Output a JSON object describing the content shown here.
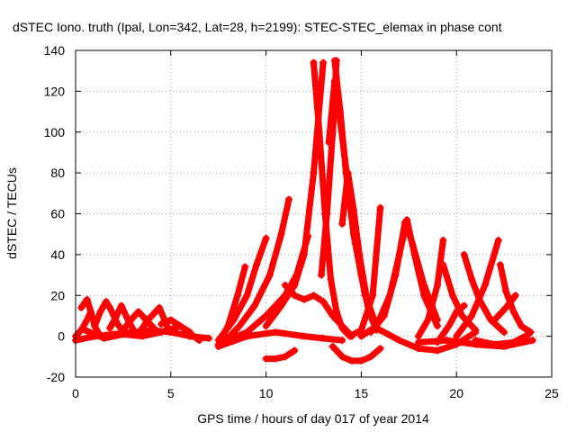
{
  "chart_data": {
    "type": "scatter",
    "title": "dSTEC Iono. truth (Ipal, Lon=342, Lat=28, h=2199): STEC-STEC_elemax in phase cont",
    "xlabel": "GPS time / hours of day 017 of year 2014",
    "ylabel": "dSTEC  / TECUs",
    "xlim": [
      0,
      25
    ],
    "ylim": [
      -20,
      140
    ],
    "xticks": [
      0,
      5,
      10,
      15,
      20,
      25
    ],
    "yticks": [
      -20,
      0,
      20,
      40,
      60,
      80,
      100,
      120,
      140
    ],
    "grid": true,
    "marker": "+",
    "color": "#ff0000",
    "series": [
      {
        "x": [
          0.0,
          0.3,
          0.6,
          0.8
        ],
        "y": [
          0,
          3,
          8,
          12
        ]
      },
      {
        "x": [
          0.3,
          0.6,
          0.8,
          1.0,
          1.3
        ],
        "y": [
          14,
          18,
          12,
          5,
          0
        ]
      },
      {
        "x": [
          1.0,
          1.3,
          1.6,
          1.8,
          2.2,
          2.6
        ],
        "y": [
          5,
          12,
          17,
          14,
          6,
          1
        ]
      },
      {
        "x": [
          1.8,
          2.1,
          2.4,
          2.7,
          3.1
        ],
        "y": [
          4,
          9,
          15,
          9,
          2
        ]
      },
      {
        "x": [
          2.5,
          2.9,
          3.3,
          3.7,
          4.2
        ],
        "y": [
          3,
          8,
          12,
          8,
          3
        ]
      },
      {
        "x": [
          3.5,
          3.8,
          4.1,
          4.4,
          4.8
        ],
        "y": [
          4,
          8,
          11,
          14,
          5
        ]
      },
      {
        "x": [
          0.0,
          1.0,
          2.0,
          3.0,
          4.0,
          5.0,
          6.0,
          7.0
        ],
        "y": [
          -2,
          0,
          1,
          2,
          3,
          2,
          0,
          -1
        ]
      },
      {
        "x": [
          0.5,
          1.5,
          2.5,
          3.5,
          4.5,
          5.5,
          6.5
        ],
        "y": [
          3,
          -1,
          1,
          0,
          2,
          5,
          -2
        ]
      },
      {
        "x": [
          4.5,
          5.0,
          5.5,
          6.0
        ],
        "y": [
          6,
          8,
          5,
          2
        ]
      },
      {
        "x": [
          7.5,
          8.0,
          8.5,
          8.9
        ],
        "y": [
          -4,
          5,
          20,
          34
        ]
      },
      {
        "x": [
          7.5,
          8.3,
          9.0,
          9.5,
          10.0
        ],
        "y": [
          -2,
          8,
          20,
          35,
          48
        ]
      },
      {
        "x": [
          7.8,
          8.6,
          9.4,
          10.2,
          10.8,
          11.2
        ],
        "y": [
          -3,
          5,
          15,
          30,
          50,
          67
        ]
      },
      {
        "x": [
          8.0,
          9.0,
          10.0,
          11.0,
          11.6,
          12.2
        ],
        "y": [
          -2,
          2,
          10,
          20,
          30,
          49
        ]
      },
      {
        "x": [
          7.5,
          9.0,
          10.5,
          12.0,
          13.0,
          14.0
        ],
        "y": [
          -5,
          0,
          2,
          0,
          -1,
          -2
        ]
      },
      {
        "x": [
          10.0,
          10.5,
          11.0,
          11.5
        ],
        "y": [
          -11,
          -11,
          -10,
          -7
        ]
      },
      {
        "x": [
          10.0,
          10.8,
          11.5,
          12.0,
          12.5,
          13.0
        ],
        "y": [
          5,
          15,
          25,
          40,
          80,
          134
        ]
      },
      {
        "x": [
          12.5,
          12.8,
          13.1,
          13.4,
          13.7,
          14.0,
          14.4,
          15.0,
          15.6,
          16.0
        ],
        "y": [
          134,
          100,
          60,
          28,
          12,
          4,
          0,
          3,
          20,
          63
        ]
      },
      {
        "x": [
          12.9,
          13.2,
          13.5,
          13.7
        ],
        "y": [
          30,
          60,
          100,
          135
        ]
      },
      {
        "x": [
          13.6,
          13.9,
          14.2,
          14.6,
          15.0,
          15.4,
          15.8
        ],
        "y": [
          135,
          110,
          80,
          50,
          30,
          12,
          3
        ]
      },
      {
        "x": [
          13.3,
          13.6,
          13.9,
          14.3,
          14.7,
          15.2
        ],
        "y": [
          95,
          125,
          105,
          75,
          45,
          20
        ]
      },
      {
        "x": [
          14.0,
          14.3,
          14.6,
          14.9,
          15.3,
          15.8
        ],
        "y": [
          55,
          80,
          62,
          40,
          18,
          5
        ]
      },
      {
        "x": [
          11.0,
          11.5,
          12.0,
          12.5,
          13.0,
          13.5,
          14.0,
          14.5
        ],
        "y": [
          25,
          20,
          18,
          20,
          17,
          10,
          5,
          0
        ]
      },
      {
        "x": [
          13.5,
          14.0,
          14.5,
          15.0,
          15.5,
          16.0
        ],
        "y": [
          -5,
          -10,
          -12,
          -12,
          -10,
          -6
        ]
      },
      {
        "x": [
          15.0,
          15.8,
          16.5,
          17.0,
          17.4,
          17.8,
          18.3,
          19.0
        ],
        "y": [
          0,
          5,
          20,
          40,
          57,
          40,
          20,
          5
        ]
      },
      {
        "x": [
          15.5,
          16.2,
          16.8,
          17.3,
          17.7,
          18.3,
          19.0
        ],
        "y": [
          2,
          10,
          30,
          56,
          45,
          25,
          8
        ]
      },
      {
        "x": [
          16.0,
          17.0,
          18.0,
          19.0,
          20.0,
          21.0
        ],
        "y": [
          3,
          -2,
          -6,
          -7,
          -4,
          2
        ]
      },
      {
        "x": [
          18.0,
          18.5,
          19.0,
          19.3
        ],
        "y": [
          0,
          8,
          25,
          47
        ]
      },
      {
        "x": [
          19.3,
          19.8,
          20.3,
          21.0
        ],
        "y": [
          35,
          20,
          10,
          3
        ]
      },
      {
        "x": [
          19.0,
          19.6,
          20.0,
          20.4
        ],
        "y": [
          -3,
          5,
          12,
          15
        ]
      },
      {
        "x": [
          20.4,
          20.8,
          21.2,
          21.8,
          22.5
        ],
        "y": [
          40,
          28,
          18,
          8,
          2
        ]
      },
      {
        "x": [
          20.0,
          20.8,
          21.5,
          22.2
        ],
        "y": [
          0,
          10,
          25,
          47
        ]
      },
      {
        "x": [
          22.3,
          22.6,
          23.0,
          23.4,
          23.9
        ],
        "y": [
          35,
          22,
          12,
          5,
          2
        ]
      },
      {
        "x": [
          22.0,
          22.6,
          23.1
        ],
        "y": [
          8,
          14,
          20
        ]
      },
      {
        "x": [
          18.0,
          19.5,
          21.0,
          22.5,
          24.0
        ],
        "y": [
          -3,
          -2,
          -4,
          -5,
          -2
        ]
      },
      {
        "x": [
          21.0,
          22.0,
          23.0,
          23.8
        ],
        "y": [
          -2,
          -4,
          -3,
          1
        ]
      }
    ]
  }
}
